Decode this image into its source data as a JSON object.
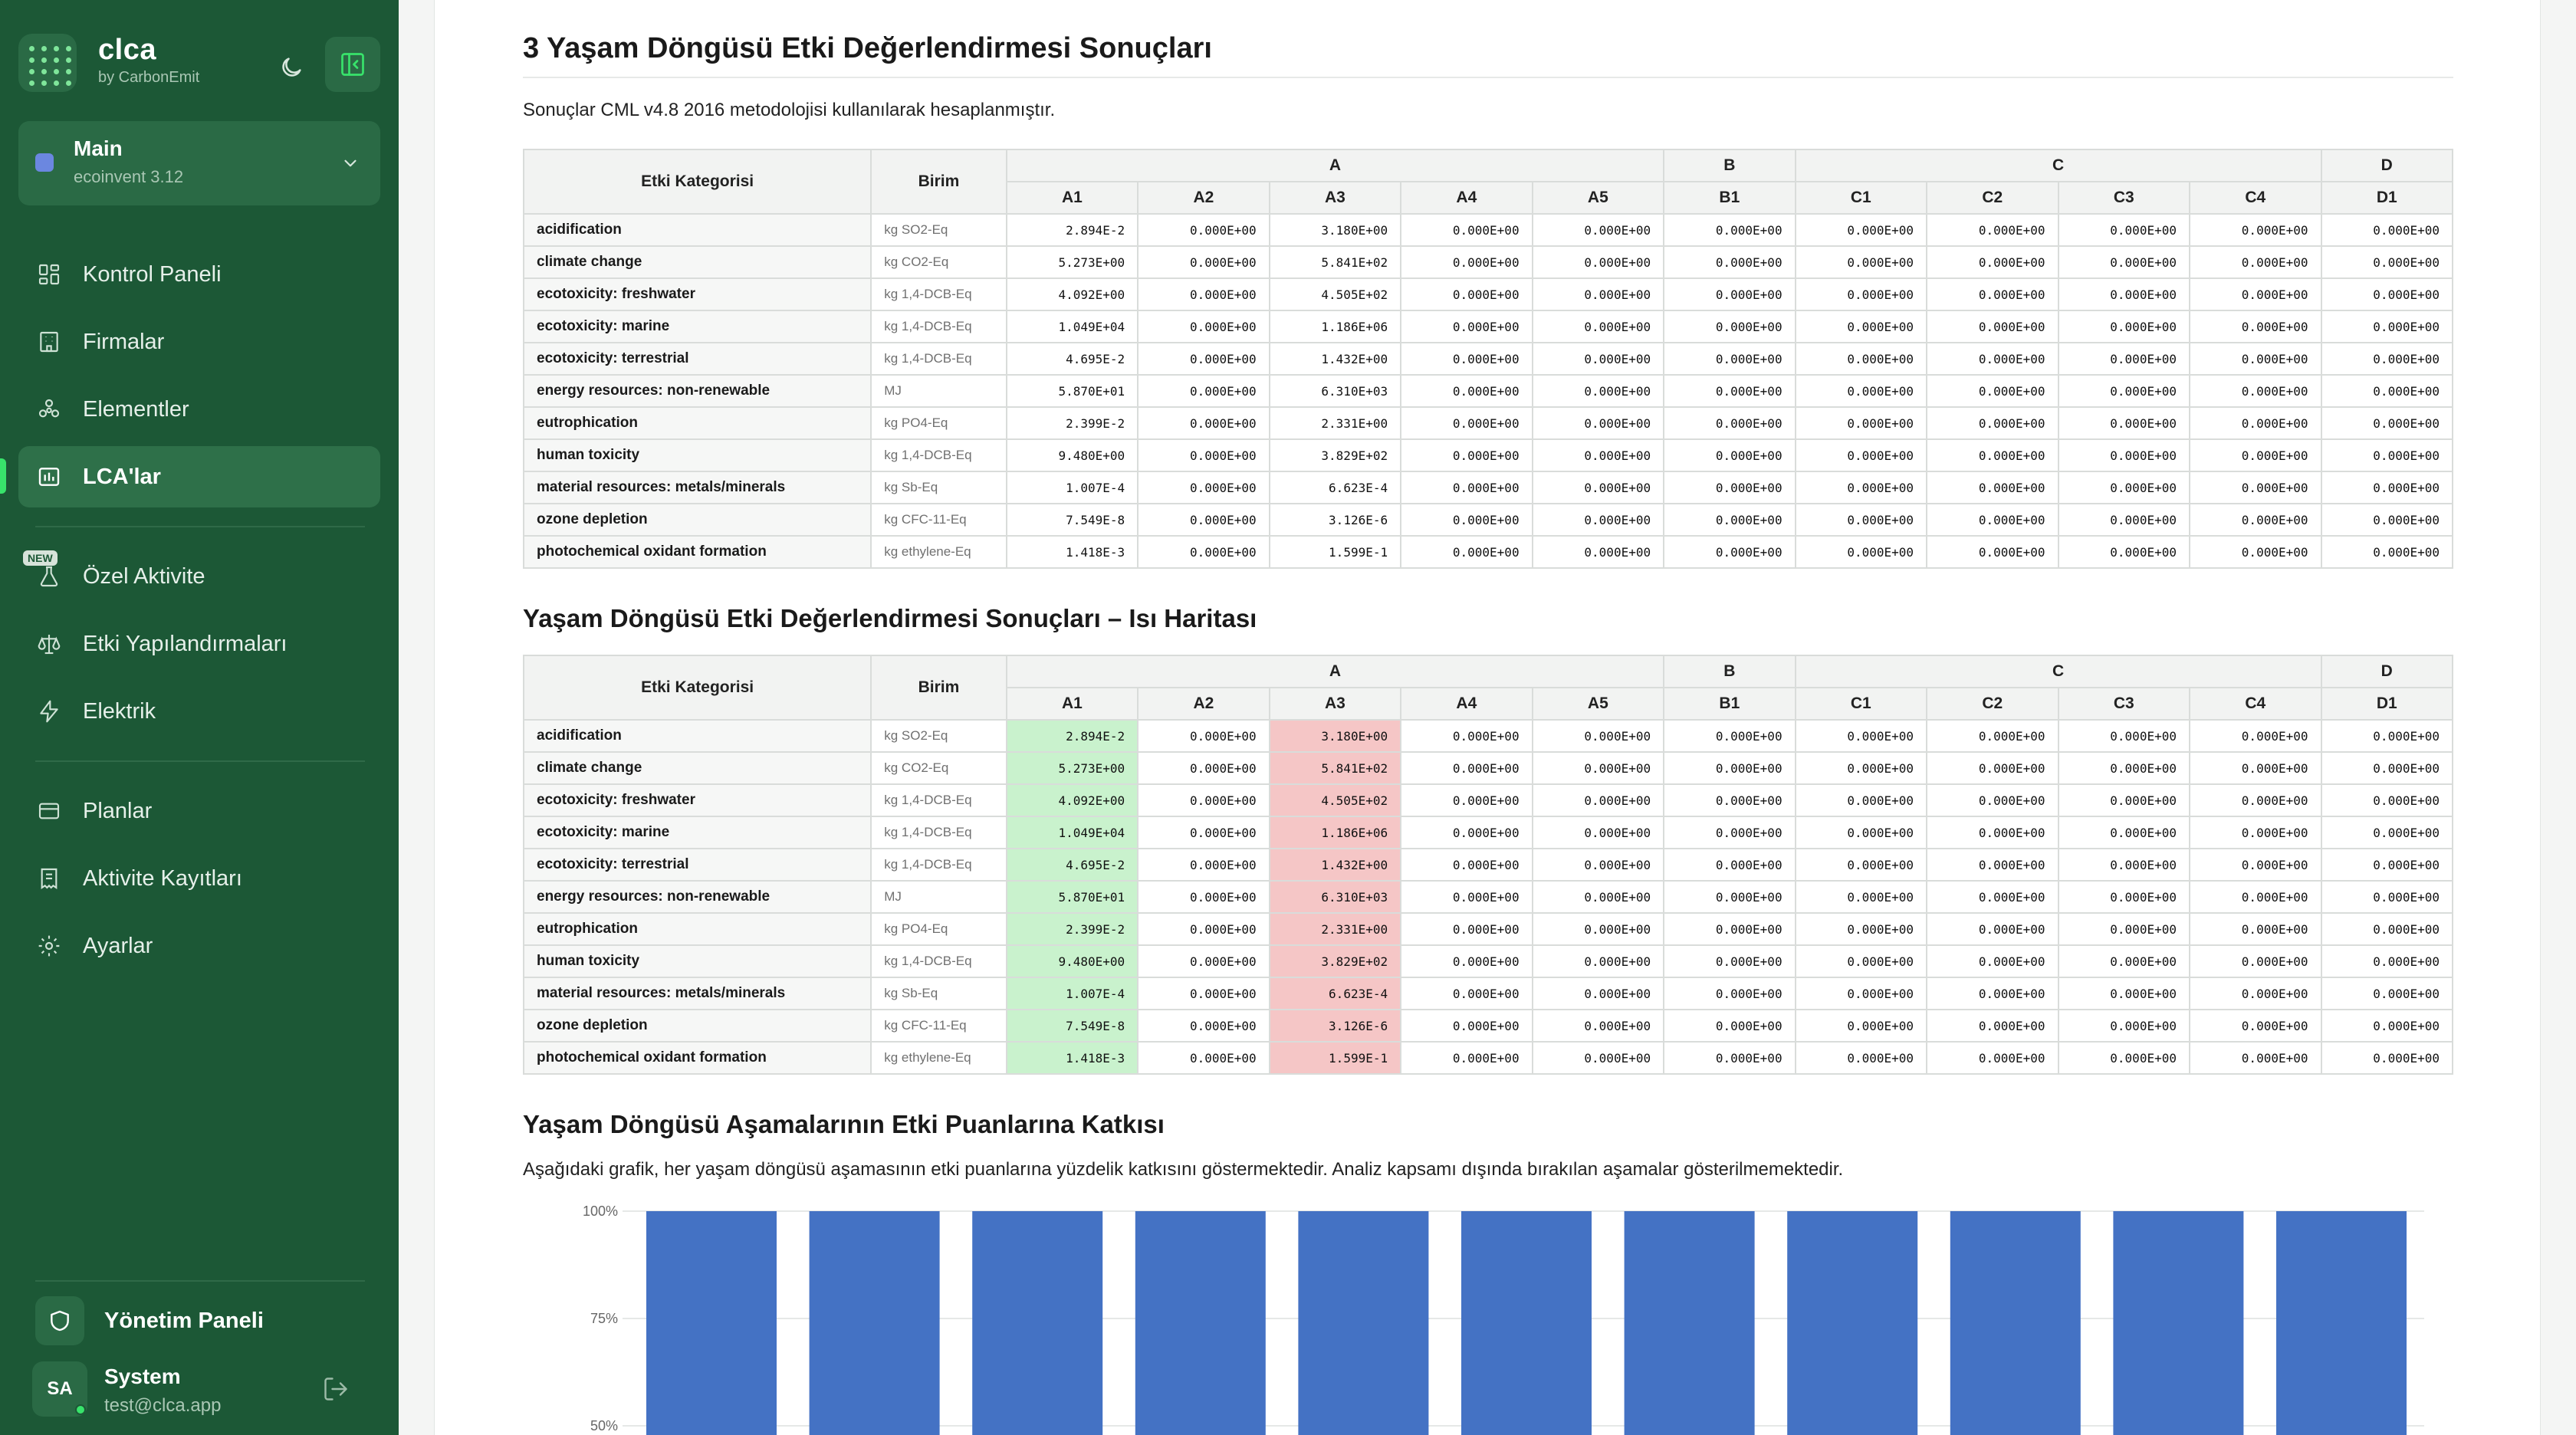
{
  "app": {
    "name": "clca",
    "byline": "by CarbonEmit"
  },
  "workspace": {
    "name": "Main",
    "database": "ecoinvent 3.12"
  },
  "nav": {
    "dashboard": "Kontrol Paneli",
    "companies": "Firmalar",
    "elements": "Elementler",
    "lcas": "LCA'lar",
    "custom_activity": "Özel Aktivite",
    "new_badge": "NEW",
    "impact_configs": "Etki Yapılandırmaları",
    "electricity": "Elektrik",
    "plans": "Planlar",
    "activity_records": "Aktivite Kayıtları",
    "settings": "Ayarlar"
  },
  "admin_panel": "Yönetim Paneli",
  "user": {
    "initials": "SA",
    "name": "System",
    "email": "test@clca.app"
  },
  "section1": {
    "title": "3 Yaşam Döngüsü Etki Değerlendirmesi Sonuçları",
    "description": "Sonuçlar CML v4.8 2016 metodolojisi kullanılarak hesaplanmıştır."
  },
  "section2": {
    "title": "Yaşam Döngüsü Etki Değerlendirmesi Sonuçları – Isı Haritası"
  },
  "section3": {
    "title": "Yaşam Döngüsü Aşamalarının Etki Puanlarına Katkısı",
    "description": "Aşağıdaki grafik, her yaşam döngüsü aşamasının etki puanlarına yüzdelik katkısını göstermektedir. Analiz kapsamı dışında bırakılan aşamalar gösterilmemektedir."
  },
  "table": {
    "col_category": "Etki Kategorisi",
    "col_unit": "Birim",
    "groups": [
      {
        "label": "A",
        "span": 5
      },
      {
        "label": "B",
        "span": 1
      },
      {
        "label": "C",
        "span": 4
      },
      {
        "label": "D",
        "span": 1
      }
    ],
    "stages": [
      "A1",
      "A2",
      "A3",
      "A4",
      "A5",
      "B1",
      "C1",
      "C2",
      "C3",
      "C4",
      "D1"
    ],
    "rows": [
      {
        "category": "acidification",
        "unit": "kg SO2-Eq",
        "values": [
          "2.894E-2",
          "0.000E+00",
          "3.180E+00",
          "0.000E+00",
          "0.000E+00",
          "0.000E+00",
          "0.000E+00",
          "0.000E+00",
          "0.000E+00",
          "0.000E+00",
          "0.000E+00"
        ]
      },
      {
        "category": "climate change",
        "unit": "kg CO2-Eq",
        "values": [
          "5.273E+00",
          "0.000E+00",
          "5.841E+02",
          "0.000E+00",
          "0.000E+00",
          "0.000E+00",
          "0.000E+00",
          "0.000E+00",
          "0.000E+00",
          "0.000E+00",
          "0.000E+00"
        ]
      },
      {
        "category": "ecotoxicity: freshwater",
        "unit": "kg 1,4-DCB-Eq",
        "values": [
          "4.092E+00",
          "0.000E+00",
          "4.505E+02",
          "0.000E+00",
          "0.000E+00",
          "0.000E+00",
          "0.000E+00",
          "0.000E+00",
          "0.000E+00",
          "0.000E+00",
          "0.000E+00"
        ]
      },
      {
        "category": "ecotoxicity: marine",
        "unit": "kg 1,4-DCB-Eq",
        "values": [
          "1.049E+04",
          "0.000E+00",
          "1.186E+06",
          "0.000E+00",
          "0.000E+00",
          "0.000E+00",
          "0.000E+00",
          "0.000E+00",
          "0.000E+00",
          "0.000E+00",
          "0.000E+00"
        ]
      },
      {
        "category": "ecotoxicity: terrestrial",
        "unit": "kg 1,4-DCB-Eq",
        "values": [
          "4.695E-2",
          "0.000E+00",
          "1.432E+00",
          "0.000E+00",
          "0.000E+00",
          "0.000E+00",
          "0.000E+00",
          "0.000E+00",
          "0.000E+00",
          "0.000E+00",
          "0.000E+00"
        ]
      },
      {
        "category": "energy resources: non-renewable",
        "unit": "MJ",
        "values": [
          "5.870E+01",
          "0.000E+00",
          "6.310E+03",
          "0.000E+00",
          "0.000E+00",
          "0.000E+00",
          "0.000E+00",
          "0.000E+00",
          "0.000E+00",
          "0.000E+00",
          "0.000E+00"
        ]
      },
      {
        "category": "eutrophication",
        "unit": "kg PO4-Eq",
        "values": [
          "2.399E-2",
          "0.000E+00",
          "2.331E+00",
          "0.000E+00",
          "0.000E+00",
          "0.000E+00",
          "0.000E+00",
          "0.000E+00",
          "0.000E+00",
          "0.000E+00",
          "0.000E+00"
        ]
      },
      {
        "category": "human toxicity",
        "unit": "kg 1,4-DCB-Eq",
        "values": [
          "9.480E+00",
          "0.000E+00",
          "3.829E+02",
          "0.000E+00",
          "0.000E+00",
          "0.000E+00",
          "0.000E+00",
          "0.000E+00",
          "0.000E+00",
          "0.000E+00",
          "0.000E+00"
        ]
      },
      {
        "category": "material resources: metals/minerals",
        "unit": "kg Sb-Eq",
        "values": [
          "1.007E-4",
          "0.000E+00",
          "6.623E-4",
          "0.000E+00",
          "0.000E+00",
          "0.000E+00",
          "0.000E+00",
          "0.000E+00",
          "0.000E+00",
          "0.000E+00",
          "0.000E+00"
        ]
      },
      {
        "category": "ozone depletion",
        "unit": "kg CFC-11-Eq",
        "values": [
          "7.549E-8",
          "0.000E+00",
          "3.126E-6",
          "0.000E+00",
          "0.000E+00",
          "0.000E+00",
          "0.000E+00",
          "0.000E+00",
          "0.000E+00",
          "0.000E+00",
          "0.000E+00"
        ]
      },
      {
        "category": "photochemical oxidant formation",
        "unit": "kg ethylene-Eq",
        "values": [
          "1.418E-3",
          "0.000E+00",
          "1.599E-1",
          "0.000E+00",
          "0.000E+00",
          "0.000E+00",
          "0.000E+00",
          "0.000E+00",
          "0.000E+00",
          "0.000E+00",
          "0.000E+00"
        ]
      }
    ],
    "heatmap_colors": {
      "low": "#c9f2cd",
      "high": "#f5c6c6"
    }
  },
  "colors": {
    "sidebar": "#1c5836",
    "accent": "#38e36b",
    "bar": "#4472c4"
  },
  "chart_data": {
    "type": "bar",
    "stacked": true,
    "categories": [
      "",
      "",
      "",
      "",
      "",
      "",
      "",
      "",
      "",
      "",
      ""
    ],
    "yticks": [
      "100%",
      "75%",
      "50%"
    ],
    "ylim": [
      50,
      100
    ],
    "series": [
      {
        "values": [
          100,
          100,
          100,
          100,
          100,
          100,
          100,
          100,
          100,
          100,
          100
        ]
      }
    ],
    "grid": true
  }
}
